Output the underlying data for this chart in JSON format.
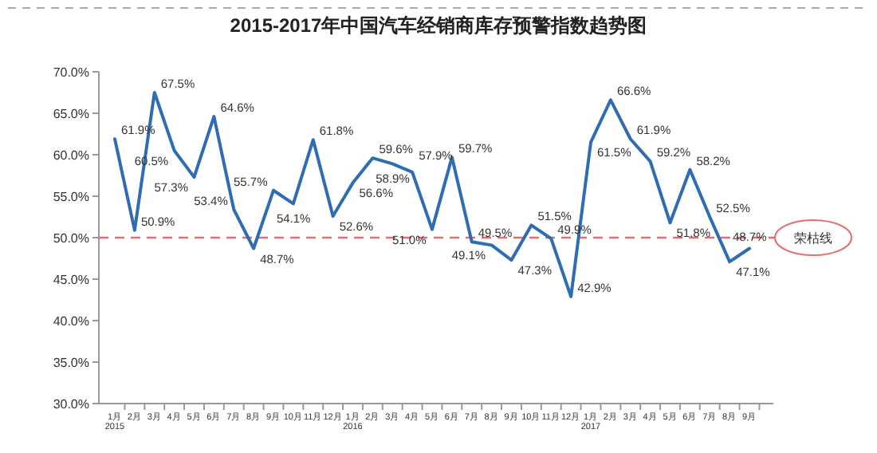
{
  "chart_data": {
    "type": "line",
    "title": "2015-2017年中国汽车经销商库存预警指数趋势图",
    "categories": [
      "1月\n2015",
      "2月",
      "3月",
      "4月",
      "5月",
      "6月",
      "7月",
      "8月",
      "9月",
      "10月",
      "11月",
      "12月",
      "1月\n2016",
      "2月",
      "3月",
      "4月",
      "5月",
      "6月",
      "7月",
      "8月",
      "9月",
      "10月",
      "11月",
      "12月",
      "1月\n2017",
      "2月",
      "3月",
      "4月",
      "5月",
      "6月",
      "7月",
      "8月",
      "9月"
    ],
    "series": [
      {
        "color": "#2e6db4",
        "values": [
          61.9,
          50.9,
          67.5,
          60.5,
          57.3,
          64.6,
          53.4,
          48.7,
          55.7,
          54.1,
          61.8,
          52.6,
          56.6,
          59.6,
          58.9,
          57.9,
          51.0,
          59.7,
          49.5,
          49.1,
          47.3,
          51.5,
          49.9,
          42.9,
          61.5,
          66.6,
          61.9,
          59.2,
          51.8,
          58.2,
          52.5,
          47.1,
          48.7
        ],
        "value_labels": [
          "61.9%",
          "50.9%",
          "67.5%",
          "60.5%",
          "57.3%",
          "64.6%",
          "53.4%",
          "48.7%",
          "55.7%",
          "54.1%",
          "61.8%",
          "52.6%",
          "56.6%",
          "59.6%",
          "58.9%",
          "57.9%",
          "51.0%",
          "59.7%",
          "49.5%",
          "49.1%",
          "47.3%",
          "51.5%",
          "49.9%",
          "42.9%",
          "61.5%",
          "66.6%",
          "61.9%",
          "59.2%",
          "51.8%",
          "58.2%",
          "52.5%",
          "47.1%",
          "48.7%"
        ]
      }
    ],
    "ylim": [
      30,
      70
    ],
    "yticks": [
      {
        "value": 30,
        "label": "30.0%"
      },
      {
        "value": 35,
        "label": "35.0%"
      },
      {
        "value": 40,
        "label": "40.0%"
      },
      {
        "value": 45,
        "label": "45.0%"
      },
      {
        "value": 50,
        "label": "50.0%"
      },
      {
        "value": 55,
        "label": "55.0%"
      },
      {
        "value": 60,
        "label": "60.0%"
      },
      {
        "value": 65,
        "label": "65.0%"
      },
      {
        "value": 70,
        "label": "70.0%"
      }
    ],
    "grid": false,
    "marker": "none",
    "line_style": "solid",
    "ref_lines": [
      {
        "axis": "y",
        "value": 50,
        "label": "荣枯线",
        "color": "#e07070",
        "line_style": "dashed"
      }
    ]
  }
}
